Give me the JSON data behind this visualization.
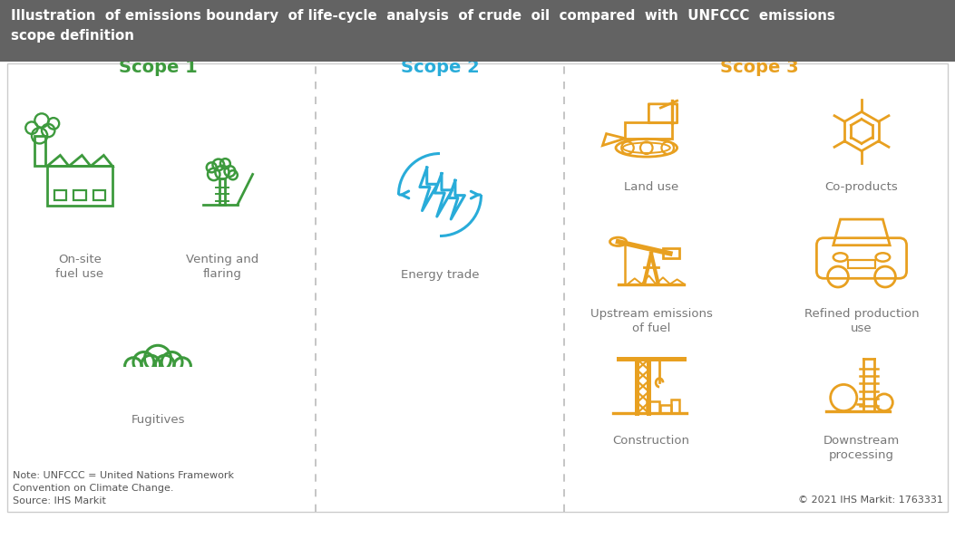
{
  "title_line1": "Illustration  of emissions boundary  of life-cycle  analysis  of crude  oil  compared  with  UNFCCC  emissions",
  "title_line2": "scope definition",
  "title_bg": "#636363",
  "title_color": "#ffffff",
  "bg_color": "#ffffff",
  "border_color": "#cccccc",
  "scope1_label": "Scope 1",
  "scope2_label": "Scope 2",
  "scope3_label": "Scope 3",
  "scope1_color": "#3d9a3d",
  "scope2_color": "#29acd9",
  "scope3_color": "#e8a020",
  "note_text": "Note: UNFCCC = United Nations Framework\nConvention on Climate Change.\nSource: IHS Markit",
  "copyright_text": "© 2021 IHS Markit: 1763331",
  "divider_color": "#bbbbbb",
  "item_label_color": "#777777",
  "item_label_fontsize": 9.5,
  "scope_label_fontsize": 14,
  "title_fontsize": 10.8
}
